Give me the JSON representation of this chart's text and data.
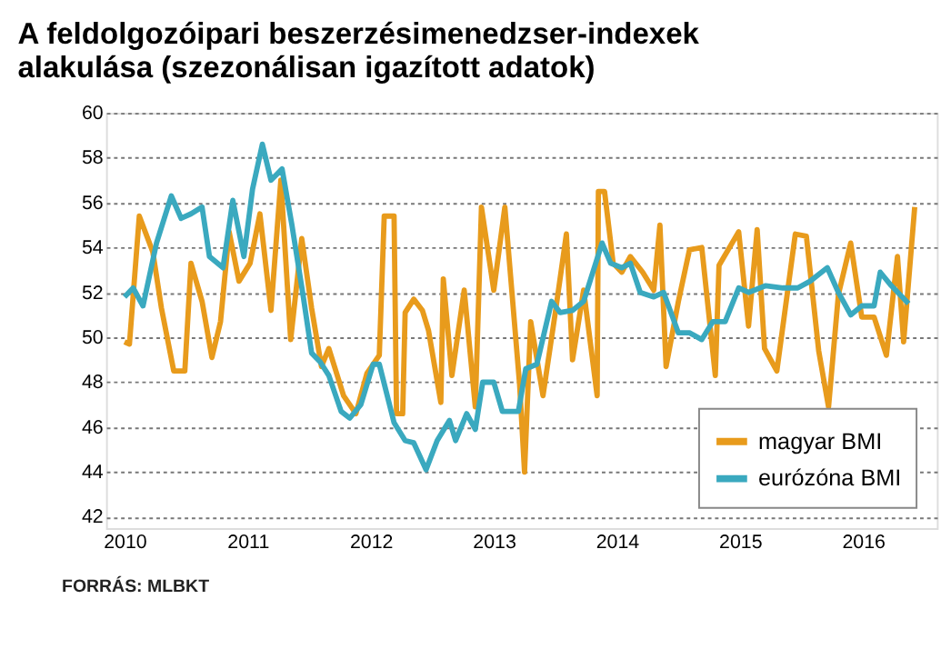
{
  "chart_data": {
    "type": "line",
    "title": "A feldolgozóipari beszerzésimenedzser-indexek alakulása (szezonálisan igazított adatok)",
    "annotations": [
      "FORRÁS: MLBKT"
    ],
    "xlim": [
      2009.85,
      2016.6
    ],
    "xticks": [
      2010,
      2011,
      2012,
      2013,
      2014,
      2015,
      2016
    ],
    "ylim": [
      41.5,
      60
    ],
    "yticks": [
      42,
      44,
      46,
      48,
      50,
      52,
      54,
      56,
      58,
      60
    ],
    "grid": "y",
    "legend": "bottom right",
    "line_style": "solid",
    "marker": "none",
    "series": [
      {
        "name": "magyar BMI",
        "color": "#e89b1c",
        "x": [
          2010.0,
          2010.04,
          2010.12,
          2010.23,
          2010.3,
          2010.4,
          2010.49,
          2010.54,
          2010.63,
          2010.71,
          2010.78,
          2010.85,
          2010.93,
          2011.02,
          2011.1,
          2011.19,
          2011.27,
          2011.35,
          2011.44,
          2011.52,
          2011.6,
          2011.66,
          2011.78,
          2011.88,
          2011.97,
          2012.07,
          2012.11,
          2012.19,
          2012.21,
          2012.26,
          2012.28,
          2012.35,
          2012.42,
          2012.47,
          2012.57,
          2012.59,
          2012.66,
          2012.76,
          2012.85,
          2012.9,
          2013.0,
          2013.09,
          2013.21,
          2013.25,
          2013.3,
          2013.4,
          2013.5,
          2013.59,
          2013.64,
          2013.73,
          2013.84,
          2013.85,
          2013.9,
          2013.97,
          2014.04,
          2014.11,
          2014.21,
          2014.3,
          2014.35,
          2014.4,
          2014.5,
          2014.59,
          2014.69,
          2014.8,
          2014.83,
          2014.99,
          2015.07,
          2015.14,
          2015.2,
          2015.3,
          2015.45,
          2015.54,
          2015.64,
          2015.72,
          2015.8,
          2015.9,
          2015.99,
          2016.09,
          2016.19,
          2016.28,
          2016.33,
          2016.42
        ],
        "values": [
          49.8,
          49.7,
          55.4,
          53.8,
          51.3,
          48.5,
          48.5,
          53.3,
          51.6,
          49.1,
          50.7,
          54.7,
          52.5,
          53.3,
          55.5,
          51.2,
          57.0,
          49.9,
          54.4,
          51.3,
          48.7,
          49.5,
          47.4,
          46.6,
          48.4,
          49.2,
          55.4,
          55.4,
          46.6,
          46.6,
          51.1,
          51.7,
          51.2,
          50.3,
          47.1,
          52.6,
          48.3,
          52.1,
          46.9,
          55.8,
          52.1,
          55.8,
          47.9,
          44.0,
          50.7,
          47.4,
          51.1,
          54.6,
          49.0,
          52.1,
          47.4,
          56.5,
          56.5,
          53.3,
          52.9,
          53.6,
          52.9,
          52.1,
          55.0,
          48.7,
          51.6,
          53.9,
          54.0,
          48.3,
          53.2,
          54.7,
          50.5,
          54.8,
          49.5,
          48.5,
          54.6,
          54.5,
          49.4,
          46.9,
          51.9,
          54.2,
          50.9,
          50.9,
          49.2,
          53.6,
          49.8,
          55.8
        ]
      },
      {
        "name": "eurózóna BMI",
        "color": "#3aa9bf",
        "x": [
          2010.0,
          2010.07,
          2010.15,
          2010.26,
          2010.38,
          2010.46,
          2010.54,
          2010.63,
          2010.69,
          2010.8,
          2010.88,
          2010.97,
          2011.04,
          2011.12,
          2011.19,
          2011.28,
          2011.36,
          2011.45,
          2011.52,
          2011.59,
          2011.66,
          2011.76,
          2011.83,
          2011.92,
          2012.02,
          2012.07,
          2012.19,
          2012.28,
          2012.35,
          2012.45,
          2012.54,
          2012.64,
          2012.69,
          2012.78,
          2012.85,
          2012.91,
          2013.0,
          2013.07,
          2013.2,
          2013.26,
          2013.35,
          2013.47,
          2013.54,
          2013.64,
          2013.73,
          2013.88,
          2013.95,
          2014.04,
          2014.11,
          2014.19,
          2014.3,
          2014.38,
          2014.5,
          2014.59,
          2014.69,
          2014.78,
          2014.88,
          2014.99,
          2015.07,
          2015.21,
          2015.35,
          2015.47,
          2015.57,
          2015.71,
          2015.8,
          2015.9,
          2015.99,
          2016.09,
          2016.14,
          2016.23,
          2016.37
        ],
        "values": [
          51.8,
          52.2,
          51.4,
          54.2,
          56.3,
          55.3,
          55.5,
          55.8,
          53.6,
          53.1,
          56.1,
          53.6,
          56.6,
          58.6,
          57.0,
          57.5,
          55.0,
          51.9,
          49.3,
          48.9,
          48.3,
          46.7,
          46.4,
          47.0,
          48.8,
          48.8,
          46.2,
          45.4,
          45.3,
          44.1,
          45.4,
          46.3,
          45.4,
          46.6,
          45.9,
          48.0,
          48.0,
          46.7,
          46.7,
          48.6,
          48.8,
          51.6,
          51.1,
          51.2,
          51.6,
          54.2,
          53.3,
          53.1,
          53.3,
          52.0,
          51.8,
          52.0,
          50.2,
          50.2,
          49.9,
          50.7,
          50.7,
          52.2,
          52.0,
          52.3,
          52.2,
          52.2,
          52.5,
          53.1,
          52.0,
          51.0,
          51.4,
          51.4,
          52.9,
          52.3,
          51.5
        ]
      }
    ]
  }
}
